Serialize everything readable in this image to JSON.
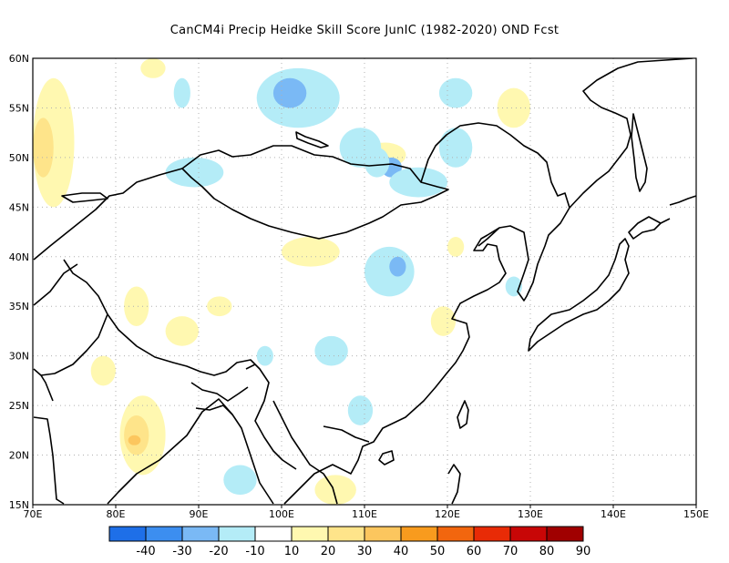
{
  "title": "CanCM4i Precip Heidke Skill Score JunIC (1982-2020) OND Fcst",
  "map": {
    "lon_range": [
      70,
      150
    ],
    "lat_range": [
      15,
      60
    ],
    "lon_ticks": [
      "70E",
      "80E",
      "90E",
      "100E",
      "110E",
      "120E",
      "130E",
      "140E",
      "150E"
    ],
    "lat_ticks": [
      "15N",
      "20N",
      "25N",
      "30N",
      "35N",
      "40N",
      "45N",
      "50N",
      "55N",
      "60N"
    ],
    "grid": "dotted",
    "regions": [
      {
        "level": "10-20",
        "lon": [
          70,
          75
        ],
        "lat": [
          45,
          58
        ]
      },
      {
        "level": "20-30",
        "lon": [
          70,
          72.5
        ],
        "lat": [
          48,
          54
        ]
      },
      {
        "level": "10-20",
        "lon": [
          80.5,
          86
        ],
        "lat": [
          18,
          26
        ]
      },
      {
        "level": "20-30",
        "lon": [
          81,
          84
        ],
        "lat": [
          20,
          24
        ]
      },
      {
        "level": "30-40",
        "lon": [
          81.5,
          83
        ],
        "lat": [
          21,
          22
        ]
      },
      {
        "level": "10-20",
        "lon": [
          77,
          80
        ],
        "lat": [
          27,
          30
        ]
      },
      {
        "level": "10-20",
        "lon": [
          81,
          84
        ],
        "lat": [
          33,
          37
        ]
      },
      {
        "level": "10-20",
        "lon": [
          86,
          90
        ],
        "lat": [
          31,
          34
        ]
      },
      {
        "level": "10-20",
        "lon": [
          91,
          94
        ],
        "lat": [
          34,
          36
        ]
      },
      {
        "level": "10-20",
        "lon": [
          100,
          107
        ],
        "lat": [
          39,
          42
        ]
      },
      {
        "level": "10-20",
        "lon": [
          118,
          121
        ],
        "lat": [
          32,
          35
        ]
      },
      {
        "level": "10-20",
        "lon": [
          126,
          130
        ],
        "lat": [
          53,
          57
        ]
      },
      {
        "level": "10-20",
        "lon": [
          110,
          115
        ],
        "lat": [
          49,
          51.5
        ]
      },
      {
        "level": "10-20",
        "lon": [
          83,
          86
        ],
        "lat": [
          58,
          60
        ]
      },
      {
        "level": "10-20",
        "lon": [
          104,
          109
        ],
        "lat": [
          15,
          18
        ]
      },
      {
        "level": "10-20",
        "lon": [
          120,
          122
        ],
        "lat": [
          40,
          42
        ]
      },
      {
        "level": "-20--10",
        "lon": [
          97,
          107
        ],
        "lat": [
          53,
          59
        ]
      },
      {
        "level": "-30--20",
        "lon": [
          99,
          103
        ],
        "lat": [
          55,
          58
        ]
      },
      {
        "level": "-20--10",
        "lon": [
          107,
          112
        ],
        "lat": [
          49,
          53
        ]
      },
      {
        "level": "-30--20",
        "lon": [
          112,
          114.5
        ],
        "lat": [
          48,
          50
        ]
      },
      {
        "level": "-20--10",
        "lon": [
          110,
          113
        ],
        "lat": [
          48,
          51
        ]
      },
      {
        "level": "-20--10",
        "lon": [
          113,
          120
        ],
        "lat": [
          46,
          49
        ]
      },
      {
        "level": "-20--10",
        "lon": [
          86,
          93
        ],
        "lat": [
          47,
          50
        ]
      },
      {
        "level": "-20--10",
        "lon": [
          87,
          89
        ],
        "lat": [
          55,
          58
        ]
      },
      {
        "level": "-20--10",
        "lon": [
          110,
          116
        ],
        "lat": [
          36,
          41
        ]
      },
      {
        "level": "-30--20",
        "lon": [
          113,
          115
        ],
        "lat": [
          38,
          40
        ]
      },
      {
        "level": "-20--10",
        "lon": [
          119,
          123
        ],
        "lat": [
          49,
          53
        ]
      },
      {
        "level": "-20--10",
        "lon": [
          127,
          129
        ],
        "lat": [
          36,
          38
        ]
      },
      {
        "level": "-20--10",
        "lon": [
          104,
          108
        ],
        "lat": [
          29,
          32
        ]
      },
      {
        "level": "-20--10",
        "lon": [
          108,
          111
        ],
        "lat": [
          23,
          26
        ]
      },
      {
        "level": "-20--10",
        "lon": [
          97,
          99
        ],
        "lat": [
          29,
          31
        ]
      },
      {
        "level": "-20--10",
        "lon": [
          119,
          123
        ],
        "lat": [
          55,
          58
        ]
      },
      {
        "level": "-20--10",
        "lon": [
          93,
          97
        ],
        "lat": [
          16,
          19
        ]
      }
    ]
  },
  "colorbar": {
    "colors": [
      "#1e6fe8",
      "#3c8ef0",
      "#7ab9f5",
      "#b4ecf7",
      "#ffffff",
      "#fff8b0",
      "#fee48a",
      "#fcc65e",
      "#f89b1e",
      "#f2660e",
      "#e82b06",
      "#c80606",
      "#a00000"
    ],
    "labels": [
      "-40",
      "-30",
      "-20",
      "-10",
      "10",
      "20",
      "30",
      "40",
      "50",
      "60",
      "70",
      "80",
      "90"
    ]
  },
  "colors": {
    "coast": "#000000",
    "grid": "#b0b0b0"
  }
}
